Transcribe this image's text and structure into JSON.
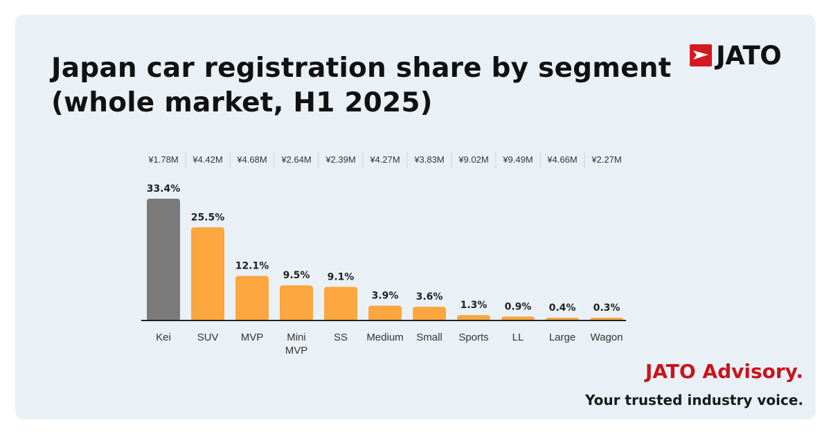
{
  "header": {
    "title": "Japan car registration share by segment (whole market, H1 2025)",
    "logo_text": "JATO"
  },
  "footer": {
    "brand": "JATO Advisory.",
    "tagline": "Your trusted industry voice."
  },
  "colors": {
    "background": "#eaf1f6",
    "highlight_bar": "#7a7a7a",
    "bar": "#fba63f",
    "brand_red": "#d41a1f"
  },
  "chart_data": {
    "type": "bar",
    "categories": [
      "Kei",
      "SUV",
      "MVP",
      "Mini\nMVP",
      "SS",
      "Medium",
      "Small",
      "Sports",
      "LL",
      "Large",
      "Wagon"
    ],
    "values": [
      33.4,
      25.5,
      12.1,
      9.5,
      9.1,
      3.9,
      3.6,
      1.3,
      0.9,
      0.4,
      0.3
    ],
    "value_labels": [
      "33.4%",
      "25.5%",
      "12.1%",
      "9.5%",
      "9.1%",
      "3.9%",
      "3.6%",
      "1.3%",
      "0.9%",
      "0.4%",
      "0.3%"
    ],
    "price_labels": [
      "¥1.78M",
      "¥4.42M",
      "¥4.68M",
      "¥2.64M",
      "¥2.39M",
      "¥4.27M",
      "¥3.83M",
      "¥9.02M",
      "¥9.49M",
      "¥4.66M",
      "¥2.27M"
    ],
    "highlight_index": 0,
    "unit": "%",
    "ylim": [
      0,
      33.4
    ],
    "grid": false,
    "legend": "none"
  }
}
